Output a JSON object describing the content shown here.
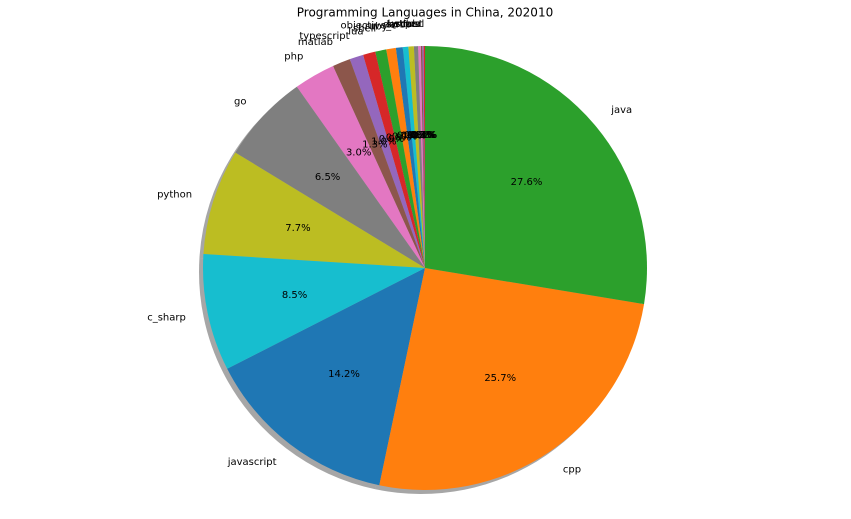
{
  "chart_data": {
    "type": "pie",
    "title": "Programming Languages in China, 202010",
    "categories": [
      "javascript",
      "cpp",
      "java",
      "perl",
      "rust",
      "scala",
      "r",
      "kotlin",
      "swift",
      "dart",
      "objective_c",
      "ruby",
      "shell",
      "lua",
      "typescript",
      "matlab",
      "php",
      "go",
      "python",
      "c_sharp"
    ],
    "values": [
      14.2,
      25.7,
      27.6,
      0.1,
      0.1,
      0.1,
      0.2,
      0.3,
      0.4,
      0.4,
      0.5,
      0.7,
      0.8,
      0.9,
      1.0,
      1.3,
      3.0,
      6.5,
      7.7,
      8.5
    ],
    "value_labels": [
      "14.2%",
      "25.7%",
      "27.6%",
      "0.1%",
      "0.1%",
      "0.1%",
      "0.2%",
      "0.3%",
      "0.4%",
      "0.4%",
      "0.5%",
      "0.7%",
      "0.8%",
      "0.9%",
      "1.0%",
      "1.3%",
      "3.0%",
      "6.5%",
      "7.7%",
      "8.5%"
    ],
    "colors": [
      "#1f77b4",
      "#ff7f0e",
      "#2ca02c",
      "#d62728",
      "#9467bd",
      "#8c564b",
      "#e377c2",
      "#7f7f7f",
      "#bcbd22",
      "#17becf",
      "#1f77b4",
      "#ff7f0e",
      "#2ca02c",
      "#d62728",
      "#9467bd",
      "#8c564b",
      "#e377c2",
      "#7f7f7f",
      "#bcbd22",
      "#17becf"
    ],
    "start_angle": 207,
    "counterclock": true,
    "shadow": true
  }
}
